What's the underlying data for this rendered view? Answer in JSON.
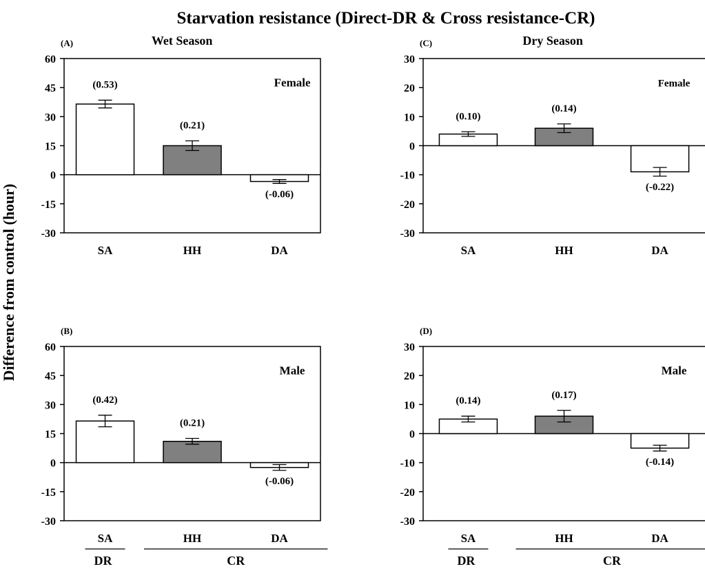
{
  "figure": {
    "title": "Starvation resistance (Direct-DR & Cross resistance-CR)",
    "ylabel": "Difference from control (hour)"
  },
  "chart_data": [
    {
      "panel": "(A)",
      "type": "bar",
      "title": "Wet Season",
      "sex_label": "Female",
      "categories": [
        "SA",
        "HH",
        "DA"
      ],
      "values": [
        36.5,
        15,
        -3.5
      ],
      "errors": [
        2,
        2.5,
        1
      ],
      "labels": [
        "(0.53)",
        "(0.21)",
        "(-0.06)"
      ],
      "colors": [
        "#ffffff",
        "#808080",
        "#ffffff"
      ],
      "ylim": [
        -30,
        60
      ],
      "yticks": [
        -30,
        -15,
        0,
        15,
        30,
        45,
        60
      ]
    },
    {
      "panel": "(B)",
      "type": "bar",
      "title": "",
      "sex_label": "Male",
      "categories": [
        "SA",
        "HH",
        "DA"
      ],
      "values": [
        21.5,
        11,
        -2.5
      ],
      "errors": [
        3,
        1.5,
        1.5
      ],
      "labels": [
        "(0.42)",
        "(0.21)",
        "(-0.06)"
      ],
      "colors": [
        "#ffffff",
        "#808080",
        "#ffffff"
      ],
      "ylim": [
        -30,
        60
      ],
      "yticks": [
        -30,
        -15,
        0,
        15,
        30,
        45,
        60
      ],
      "groups": [
        {
          "label": "DR",
          "categories": [
            "SA"
          ]
        },
        {
          "label": "CR",
          "categories": [
            "HH",
            "DA"
          ]
        }
      ]
    },
    {
      "panel": "(C)",
      "type": "bar",
      "title": "Dry Season",
      "sex_label": "Female",
      "categories": [
        "SA",
        "HH",
        "DA"
      ],
      "values": [
        4,
        6,
        -9
      ],
      "errors": [
        0.8,
        1.5,
        1.5
      ],
      "labels": [
        "(0.10)",
        "(0.14)",
        "(-0.22)"
      ],
      "colors": [
        "#ffffff",
        "#808080",
        "#ffffff"
      ],
      "ylim": [
        -30,
        30
      ],
      "yticks": [
        -30,
        -20,
        -10,
        0,
        10,
        20,
        30
      ]
    },
    {
      "panel": "(D)",
      "type": "bar",
      "title": "",
      "sex_label": "Male",
      "categories": [
        "SA",
        "HH",
        "DA"
      ],
      "values": [
        5,
        6,
        -5
      ],
      "errors": [
        1,
        2,
        1
      ],
      "labels": [
        "(0.14)",
        "(0.17)",
        "(-0.14)"
      ],
      "colors": [
        "#ffffff",
        "#808080",
        "#ffffff"
      ],
      "ylim": [
        -30,
        30
      ],
      "yticks": [
        -30,
        -20,
        -10,
        0,
        10,
        20,
        30
      ],
      "groups": [
        {
          "label": "DR",
          "categories": [
            "SA"
          ]
        },
        {
          "label": "CR",
          "categories": [
            "HH",
            "DA"
          ]
        }
      ]
    }
  ]
}
